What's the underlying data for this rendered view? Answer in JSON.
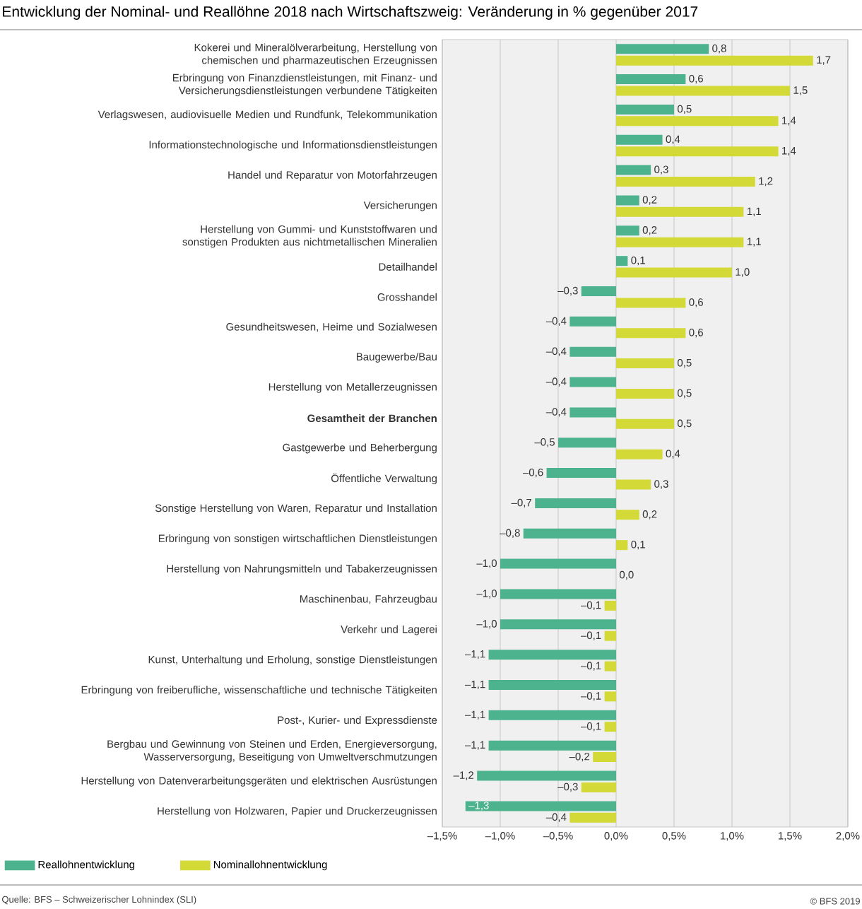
{
  "chart_data": {
    "type": "bar",
    "orientation": "horizontal",
    "title": "Entwicklung der Nominal- und Reallöhne 2018 nach Wirtschaftszweig: Veränderung in % gegenüber 2017",
    "categories": [
      "Kokerei und Mineralölverarbeitung, Herstellung von chemischen und pharmazeutischen Erzeugnissen",
      "Erbringung von Finanzdienstleistungen, mit Finanz- und Versicherungsdienstleistungen verbundene Tätigkeiten",
      "Verlagswesen, audiovisuelle Medien und Rundfunk, Telekommunikation",
      "Informationstechnologische und Informationsdienstleistungen",
      "Handel und Reparatur von Motorfahrzeugen",
      "Versicherungen",
      "Herstellung von Gummi- und Kunststoffwaren und sonstigen Produkten aus nichtmetallischen Mineralien",
      "Detailhandel",
      "Grosshandel",
      "Gesundheitswesen, Heime und Sozialwesen",
      "Baugewerbe/Bau",
      "Herstellung von Metallerzeugnissen",
      "**Gesamtheit der Branchen**",
      "Gastgewerbe und Beherbergung",
      "Öffentliche Verwaltung",
      "Sonstige Herstellung von Waren, Reparatur und Installation",
      "Erbringung von sonstigen wirtschaftlichen Dienstleistungen",
      "Herstellung von Nahrungsmitteln und Tabakerzeugnissen",
      "Maschinenbau, Fahrzeugbau",
      "Verkehr und Lagerei",
      "Kunst, Unterhaltung und Erholung, sonstige Dienstleistungen",
      "Erbringung von freiberufliche, wissenschaftliche und technische Tätigkeiten",
      "Post-, Kurier- und Expressdienste",
      "Bergbau und Gewinnung von Steinen und Erden, Energieversorgung, Wasserversorgung, Beseitigung von Umweltverschmutzungen",
      "Herstellung von Datenverarbeitungsgeräten und elektrischen Ausrüstungen",
      "Herstellung von Holzwaren, Papier und Druckerzeugnissen"
    ],
    "series": [
      {
        "name": "Reallohnentwicklung",
        "color": "#4cb38e",
        "values": [
          0.8,
          0.6,
          0.5,
          0.4,
          0.3,
          0.2,
          0.2,
          0.1,
          -0.3,
          -0.4,
          -0.4,
          -0.4,
          -0.4,
          -0.5,
          -0.6,
          -0.7,
          -0.8,
          -1.0,
          -1.0,
          -1.0,
          -1.1,
          -1.1,
          -1.1,
          -1.1,
          -1.2,
          -1.3
        ],
        "value_labels": [
          "0,8",
          "0,6",
          "0,5",
          "0,4",
          "0,3",
          "0,2",
          "0,2",
          "0,1",
          "–0,3",
          "–0,4",
          "–0,4",
          "–0,4",
          "–0,4",
          "–0,5",
          "–0,6",
          "–0,7",
          "–0,8",
          "–1,0",
          "–1,0",
          "–1,0",
          "–1,1",
          "–1,1",
          "–1,1",
          "–1,1",
          "–1,2",
          "–1,3"
        ]
      },
      {
        "name": "Nominallohnentwicklung",
        "color": "#d3d936",
        "values": [
          1.7,
          1.5,
          1.4,
          1.4,
          1.2,
          1.1,
          1.1,
          1.0,
          0.6,
          0.6,
          0.5,
          0.5,
          0.5,
          0.4,
          0.3,
          0.2,
          0.1,
          0.0,
          -0.1,
          -0.1,
          -0.1,
          -0.1,
          -0.1,
          -0.2,
          -0.3,
          -0.4
        ],
        "value_labels": [
          "1,7",
          "1,5",
          "1,4",
          "1,4",
          "1,2",
          "1,1",
          "1,1",
          "1,0",
          "0,6",
          "0,6",
          "0,5",
          "0,5",
          "0,5",
          "0,4",
          "0,3",
          "0,2",
          "0,1",
          "0,0",
          "–0,1",
          "–0,1",
          "–0,1",
          "–0,1",
          "–0,1",
          "–0,2",
          "–0,3",
          "–0,4"
        ]
      }
    ],
    "xlim": [
      -1.5,
      2.0
    ],
    "xticks": [
      {
        "value": -1.5,
        "label": "–1,5%"
      },
      {
        "value": -1.0,
        "label": "–1,0%"
      },
      {
        "value": -0.5,
        "label": "–0,5%"
      },
      {
        "value": 0.0,
        "label": "0,0%"
      },
      {
        "value": 0.5,
        "label": "0,5%"
      },
      {
        "value": 1.0,
        "label": "1,0%"
      },
      {
        "value": 1.5,
        "label": "1,5%"
      },
      {
        "value": 2.0,
        "label": "2,0%"
      }
    ],
    "grid": "x",
    "legend": "bottom left",
    "annotations": [
      "Quelle: BFS – Schweizerischer Lohnindex (SLI)",
      "© BFS 2019"
    ]
  }
}
